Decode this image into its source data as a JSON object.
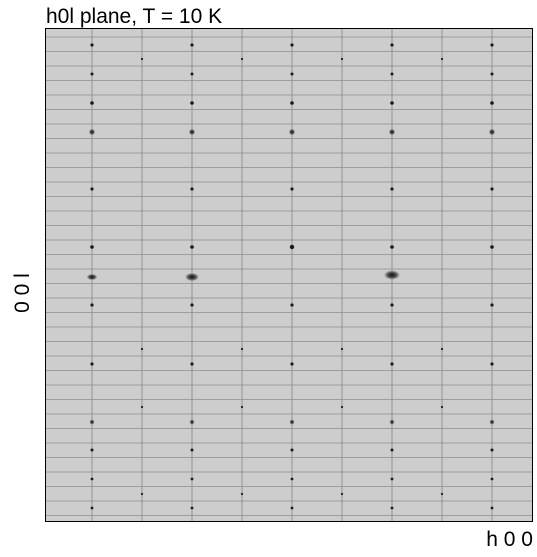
{
  "title": "h0l plane, T = 10 K",
  "xlabel": "h 0 0",
  "ylabel": "0 0 l",
  "colors": {
    "background": "#cdcdcd",
    "detector_gap_lines": "#8c8c8c",
    "bragg_peak": "#1a1a1a"
  }
}
